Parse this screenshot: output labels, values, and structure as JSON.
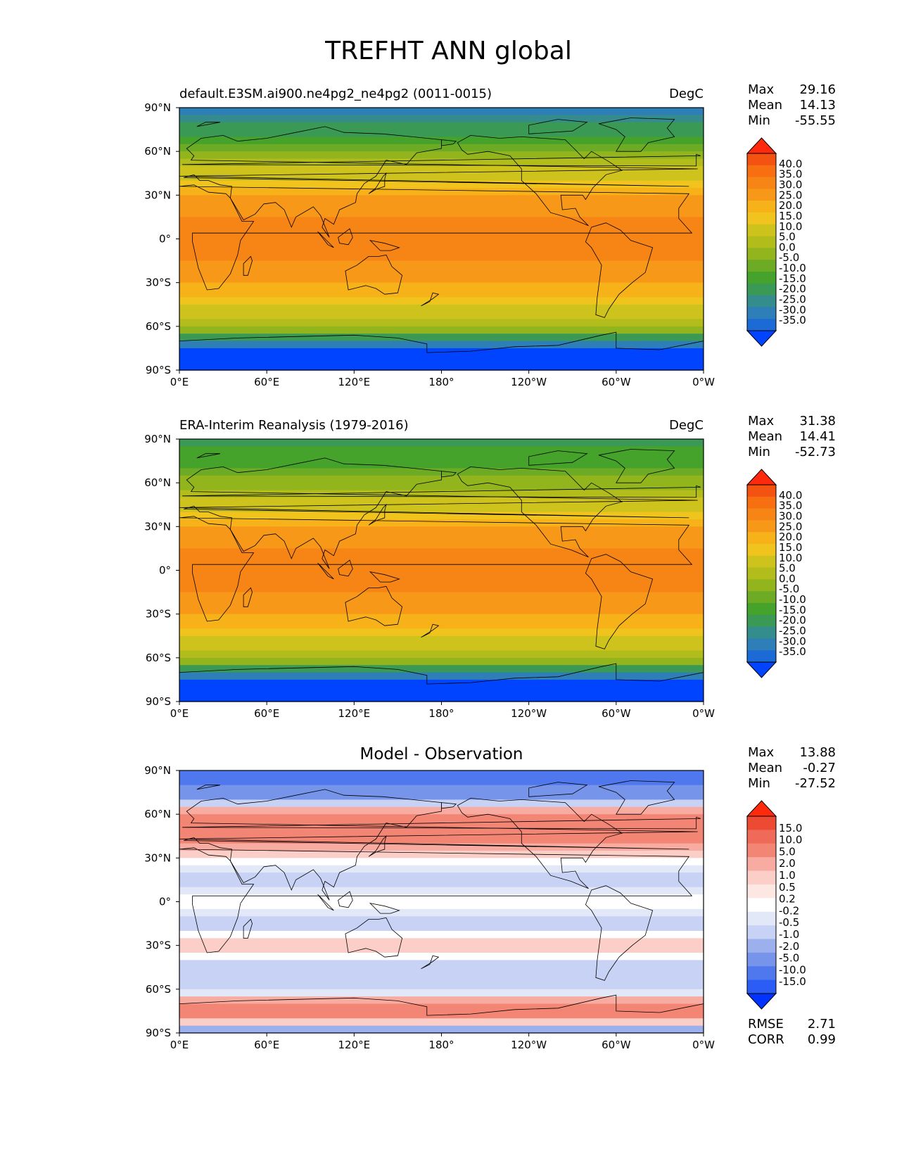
{
  "title": "TREFHT ANN global",
  "colors": {
    "temp_levels": [
      "#0044ff",
      "#1c6ad6",
      "#2e7fb7",
      "#358c8d",
      "#3a9a55",
      "#45a32b",
      "#6dab24",
      "#92b51d",
      "#b2bd1c",
      "#cec21c",
      "#f0c41c",
      "#f7b21a",
      "#f79818",
      "#f78516",
      "#f76f10",
      "#f45210",
      "#ff2a0d"
    ],
    "diff_levels": [
      "#0033ff",
      "#2b5df6",
      "#4f78ee",
      "#7694ea",
      "#9db0ee",
      "#c8d2f5",
      "#e3e8f9",
      "#ffffff",
      "#fde7e3",
      "#fbcfc7",
      "#f8aba0",
      "#f38574",
      "#ef6a58",
      "#ec4a33",
      "#ff2a0d"
    ],
    "land_outline": "#000000"
  },
  "axes": {
    "x_ticks": [
      "0°E",
      "60°E",
      "120°E",
      "180°",
      "120°W",
      "60°W",
      "0°W"
    ],
    "y_ticks": [
      "90°N",
      "60°N",
      "30°N",
      "0°",
      "30°S",
      "60°S",
      "90°S"
    ]
  },
  "panels": [
    {
      "title_left": "default.E3SM.ai900.ne4pg2_ne4pg2 (0011-0015)",
      "title_right": "DegC",
      "title_center": "",
      "stats": [
        {
          "label": "Max",
          "value": "29.16"
        },
        {
          "label": "Mean",
          "value": "14.13"
        },
        {
          "label": "Min",
          "value": "-55.55"
        }
      ],
      "colorbar_ticks": [
        "40.0",
        "35.0",
        "30.0",
        "25.0",
        "20.0",
        "15.0",
        "10.0",
        "5.0",
        "0.0",
        "-5.0",
        "-10.0",
        "-15.0",
        "-20.0",
        "-25.0",
        "-30.0",
        "-35.0"
      ],
      "metrics": []
    },
    {
      "title_left": "ERA-Interim Reanalysis (1979-2016)",
      "title_right": "DegC",
      "title_center": "",
      "stats": [
        {
          "label": "Max",
          "value": "31.38"
        },
        {
          "label": "Mean",
          "value": "14.41"
        },
        {
          "label": "Min",
          "value": "-52.73"
        }
      ],
      "colorbar_ticks": [
        "40.0",
        "35.0",
        "30.0",
        "25.0",
        "20.0",
        "15.0",
        "10.0",
        "5.0",
        "0.0",
        "-5.0",
        "-10.0",
        "-15.0",
        "-20.0",
        "-25.0",
        "-30.0",
        "-35.0"
      ],
      "metrics": []
    },
    {
      "title_left": "",
      "title_right": "",
      "title_center": "Model - Observation",
      "stats": [
        {
          "label": "Max",
          "value": "13.88"
        },
        {
          "label": "Mean",
          "value": "-0.27"
        },
        {
          "label": "Min",
          "value": "-27.52"
        }
      ],
      "colorbar_ticks": [
        "15.0",
        "10.0",
        "5.0",
        "2.0",
        "1.0",
        "0.5",
        "0.2",
        "-0.2",
        "-0.5",
        "-1.0",
        "-2.0",
        "-5.0",
        "-10.0",
        "-15.0"
      ],
      "metrics": [
        {
          "label": "RMSE",
          "value": "2.71"
        },
        {
          "label": "CORR",
          "value": "0.99"
        }
      ]
    }
  ],
  "chart_data": [
    {
      "type": "heatmap",
      "title": "default.E3SM.ai900.ne4pg2_ne4pg2 (0011-0015)",
      "units": "DegC",
      "x": [
        "0°E",
        "60°E",
        "120°E",
        "180°",
        "120°W",
        "60°W",
        "0°W"
      ],
      "y": [
        "90°N",
        "60°N",
        "30°N",
        "0°",
        "30°S",
        "60°S",
        "90°S"
      ],
      "zonal_mean_lat": [
        90,
        75,
        60,
        45,
        30,
        15,
        0,
        -15,
        -30,
        -45,
        -60,
        -75,
        -90
      ],
      "zonal_mean_value": [
        -27,
        -18,
        -4,
        8,
        19,
        25,
        27,
        25,
        19,
        11,
        1,
        -35,
        -45
      ],
      "stats": {
        "max": 29.16,
        "mean": 14.13,
        "min": -55.55
      },
      "colorbar_levels": [
        -35,
        -30,
        -25,
        -20,
        -15,
        -10,
        -5,
        0,
        5,
        10,
        15,
        20,
        25,
        30,
        35,
        40
      ]
    },
    {
      "type": "heatmap",
      "title": "ERA-Interim Reanalysis (1979-2016)",
      "units": "DegC",
      "x": [
        "0°E",
        "60°E",
        "120°E",
        "180°",
        "120°W",
        "60°W",
        "0°W"
      ],
      "y": [
        "90°N",
        "60°N",
        "30°N",
        "0°",
        "30°S",
        "60°S",
        "90°S"
      ],
      "zonal_mean_lat": [
        90,
        75,
        60,
        45,
        30,
        15,
        0,
        -15,
        -30,
        -45,
        -60,
        -75,
        -90
      ],
      "zonal_mean_value": [
        -18,
        -12,
        -3,
        8,
        19,
        25,
        27,
        25,
        19,
        11,
        2,
        -33,
        -47
      ],
      "stats": {
        "max": 31.38,
        "mean": 14.41,
        "min": -52.73
      },
      "colorbar_levels": [
        -35,
        -30,
        -25,
        -20,
        -15,
        -10,
        -5,
        0,
        5,
        10,
        15,
        20,
        25,
        30,
        35,
        40
      ]
    },
    {
      "type": "heatmap",
      "title": "Model - Observation",
      "units": "DegC",
      "x": [
        "0°E",
        "60°E",
        "120°E",
        "180°",
        "120°W",
        "60°W",
        "0°W"
      ],
      "y": [
        "90°N",
        "60°N",
        "30°N",
        "0°",
        "30°S",
        "60°S",
        "90°S"
      ],
      "zonal_mean_lat": [
        90,
        75,
        60,
        45,
        30,
        15,
        0,
        -15,
        -30,
        -45,
        -60,
        -75,
        -90
      ],
      "zonal_mean_value": [
        -8,
        -4,
        2,
        3,
        0,
        -1,
        0,
        -1,
        1,
        -1,
        -1,
        3,
        -2
      ],
      "stats": {
        "max": 13.88,
        "mean": -0.27,
        "min": -27.52
      },
      "colorbar_levels": [
        -15,
        -10,
        -5,
        -2,
        -1,
        -0.5,
        -0.2,
        0.2,
        0.5,
        1,
        2,
        5,
        10,
        15
      ],
      "rmse": 2.71,
      "corr": 0.99
    }
  ]
}
